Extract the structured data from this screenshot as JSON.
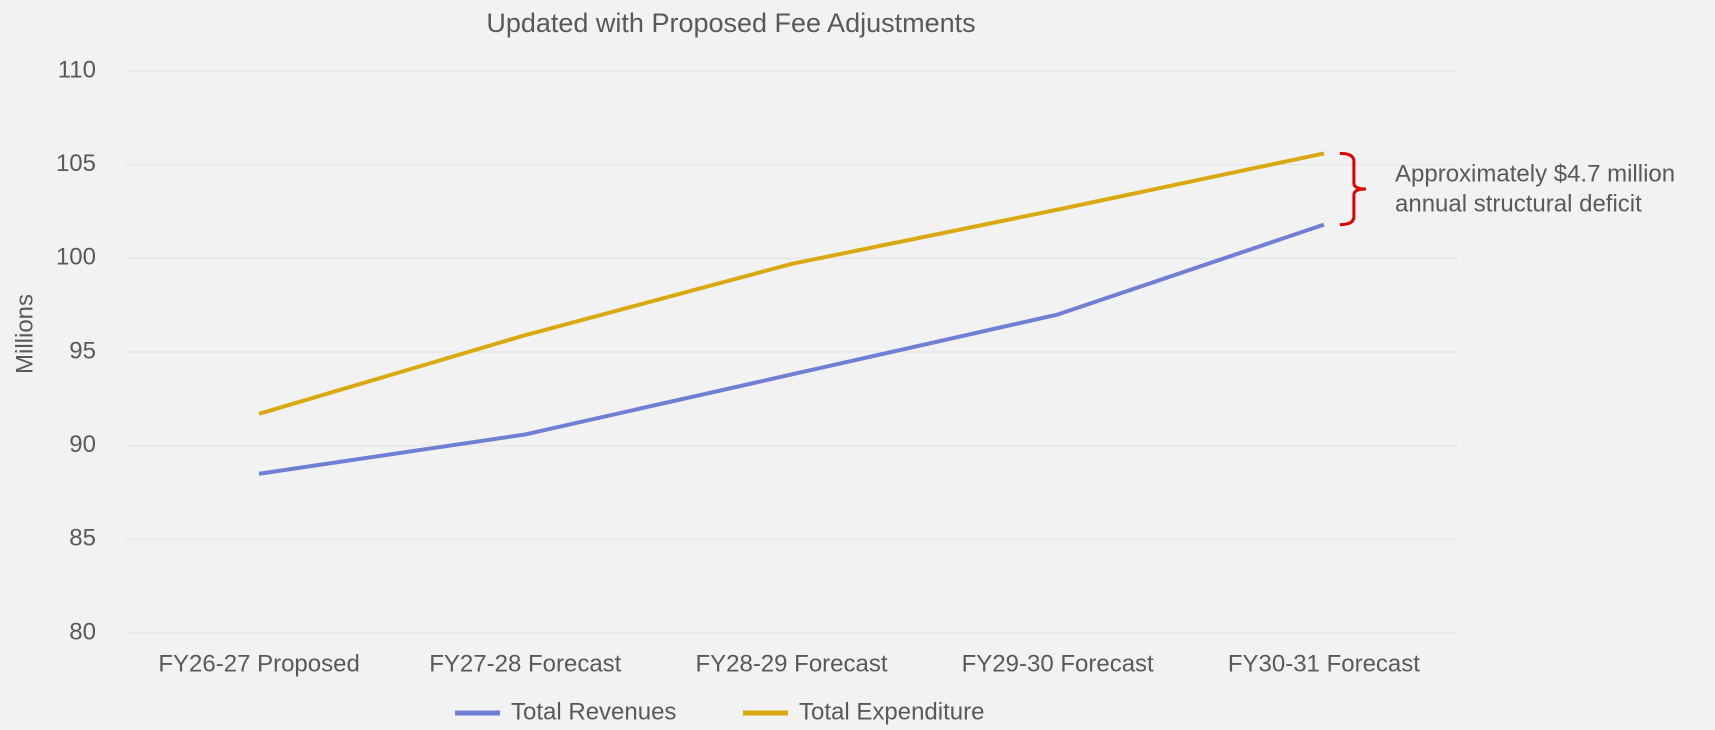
{
  "chart_data": {
    "type": "line",
    "title": "Updated with Proposed Fee Adjustments",
    "y_label": "Millions",
    "categories": [
      "FY26-27 Proposed",
      "FY27-28 Forecast",
      "FY28-29 Forecast",
      "FY29-30 Forecast",
      "FY30-31 Forecast"
    ],
    "series": [
      {
        "name": "Total Revenues",
        "color": "#6f7fd4",
        "values": [
          88.5,
          90.6,
          93.8,
          97.0,
          101.8
        ]
      },
      {
        "name": "Total Expenditure",
        "color": "#d9a90f",
        "values": [
          91.7,
          95.9,
          99.7,
          102.6,
          105.6
        ]
      }
    ],
    "ylim": [
      80,
      110
    ],
    "yticks": [
      80,
      85,
      90,
      95,
      100,
      105,
      110
    ],
    "grid": true,
    "legend": "bottom",
    "annotation": [
      "Approximately $4.7 million",
      "annual structural deficit"
    ],
    "annotation_color": "#e00000"
  }
}
